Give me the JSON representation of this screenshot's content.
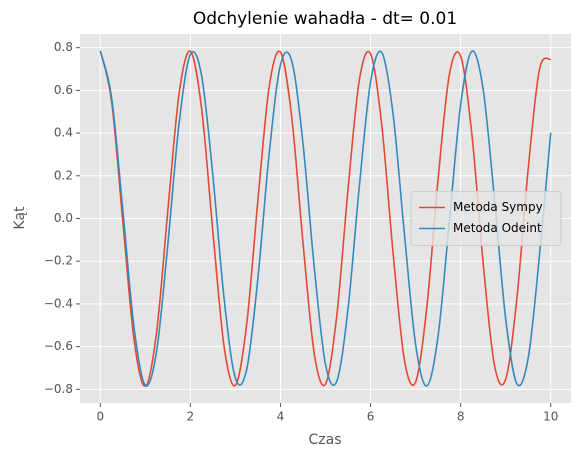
{
  "chart_data": {
    "type": "line",
    "title": "Odchylenie wahadła - dt= 0.01",
    "x_label": "Czas",
    "y_label": "Kąt",
    "x": [
      0,
      0.25,
      0.5,
      0.75,
      1,
      1.25,
      1.5,
      1.75,
      2,
      2.25,
      2.5,
      2.75,
      3,
      3.25,
      3.5,
      3.75,
      4,
      4.25,
      4.5,
      4.75,
      5,
      5.25,
      5.5,
      5.75,
      6,
      6.25,
      6.5,
      6.75,
      7,
      7.25,
      7.5,
      7.75,
      8,
      8.25,
      8.5,
      8.75,
      9,
      9.25,
      9.5,
      9.75,
      10
    ],
    "series": [
      {
        "name": "Metoda Sympy",
        "color": "#E24A33",
        "values": [
          0.785,
          0.551,
          -0.012,
          -0.568,
          -0.785,
          -0.533,
          0.037,
          0.585,
          0.783,
          0.514,
          -0.062,
          -0.601,
          -0.781,
          -0.495,
          0.087,
          0.617,
          0.779,
          0.475,
          -0.112,
          -0.632,
          -0.775,
          -0.455,
          0.136,
          0.647,
          0.771,
          0.435,
          -0.161,
          -0.66,
          -0.766,
          -0.414,
          0.185,
          0.674,
          0.76,
          0.393,
          -0.209,
          -0.686,
          -0.753,
          -0.371,
          0.233,
          0.698,
          0.746
        ]
      },
      {
        "name": "Metoda Odeint",
        "color": "#348ABD",
        "values": [
          0.785,
          0.569,
          0.041,
          -0.511,
          -0.781,
          -0.622,
          -0.121,
          0.446,
          0.768,
          0.668,
          0.2,
          -0.377,
          -0.748,
          -0.707,
          -0.278,
          0.304,
          0.719,
          0.738,
          0.352,
          -0.228,
          -0.683,
          -0.762,
          -0.423,
          0.149,
          0.639,
          0.777,
          0.489,
          -0.069,
          -0.589,
          -0.784,
          -0.549,
          -0.012,
          0.532,
          0.783,
          0.604,
          0.093,
          -0.47,
          -0.774,
          -0.653,
          -0.173,
          0.402
        ]
      }
    ],
    "xlim": [
      -0.45,
      10.45
    ],
    "ylim": [
      -0.864,
      0.864
    ],
    "xticks": [
      0,
      2,
      4,
      6,
      8,
      10
    ],
    "yticks": [
      {
        "value": -0.8,
        "label": "−0.8"
      },
      {
        "value": -0.6,
        "label": "−0.6"
      },
      {
        "value": -0.4,
        "label": "−0.4"
      },
      {
        "value": -0.2,
        "label": "−0.2"
      },
      {
        "value": 0,
        "label": "0.0"
      },
      0.2,
      0.4,
      0.6,
      0.8
    ],
    "grid": true,
    "legend": "center right"
  }
}
